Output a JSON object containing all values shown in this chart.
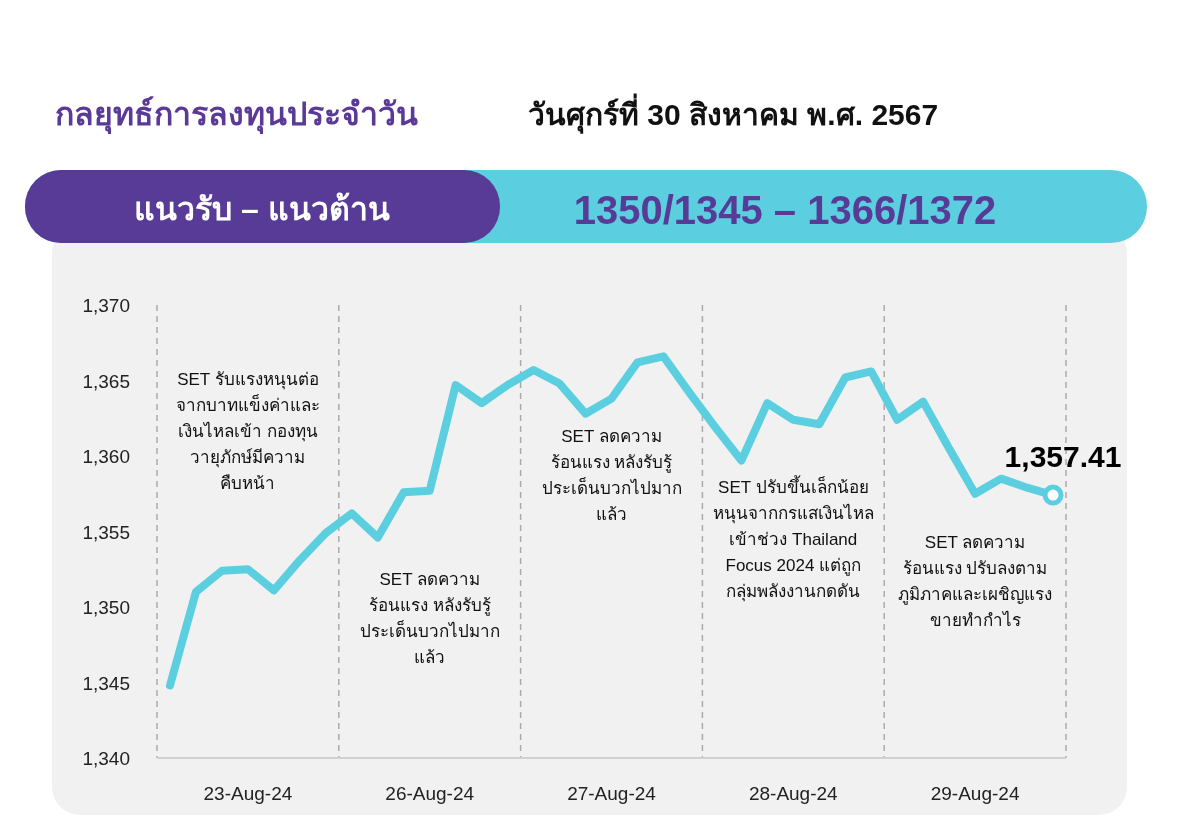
{
  "chart_data": {
    "type": "line",
    "title": "กลยุทธ์การลงทุนประจำวัน",
    "subtitle": "วันศุกร์ที่ 30 สิงหาคม พ.ศ. 2567",
    "annotations": [
      "แนวรับ – แนวต้าน",
      "1350/1345 – 1366/1372",
      "SET รับแรงหนุนต่อ\nจากบาทแข็งค่าและ\nเงินไหลเข้า กองทุน\nวายุภักษ์มีความ\nคืบหน้า",
      "SET ลดความ\nร้อนแรง หลังรับรู้\nประเด็นบวกไปมาก\nแล้ว",
      "SET ลดความ\nร้อนแรง หลังรับรู้\nประเด็นบวกไปมาก\nแล้ว",
      "SET ปรับขึ้นเล็กน้อย\nหนุนจากกรแสเงินไหล\nเข้าช่วง Thailand\nFocus 2024 แต่ถูก\nกลุ่มพลังงานกดดัน",
      "SET ลดความ\nร้อนแรง ปรับลงตาม\nภูมิภาคและเผชิญแรง\nขายทำกำไร"
    ],
    "series": [
      {
        "color": "#5bcfdf",
        "values": [
          1344.8,
          1351.0,
          1352.4,
          1352.5,
          1351.1,
          1353.1,
          1354.9,
          1356.2,
          1354.6,
          1357.6,
          1357.7,
          1364.7,
          1363.5,
          1364.7,
          1365.7,
          1364.8,
          1362.8,
          1363.8,
          1366.2,
          1366.6,
          1364.2,
          1361.9,
          1359.7,
          1363.5,
          1362.4,
          1362.1,
          1365.2,
          1365.6,
          1362.4,
          1363.6,
          1360.5,
          1357.5,
          1358.5,
          1357.9,
          1357.41
        ]
      },
      {
        "type": "scatter",
        "color": "#5bcfdf",
        "marker": "circle",
        "values": [
          null,
          null,
          null,
          null,
          null,
          null,
          null,
          null,
          null,
          null,
          null,
          null,
          null,
          null,
          null,
          null,
          null,
          null,
          null,
          null,
          null,
          null,
          null,
          null,
          null,
          null,
          null,
          null,
          null,
          null,
          null,
          null,
          null,
          null,
          1357.41
        ],
        "value_labels": [
          null,
          null,
          null,
          null,
          null,
          null,
          null,
          null,
          null,
          null,
          null,
          null,
          null,
          null,
          null,
          null,
          null,
          null,
          null,
          null,
          null,
          null,
          null,
          null,
          null,
          null,
          null,
          null,
          null,
          null,
          null,
          null,
          null,
          null,
          "1,357.41"
        ]
      }
    ],
    "categories": [
      null,
      null,
      null,
      "23-Aug-24",
      null,
      null,
      null,
      null,
      null,
      null,
      "26-Aug-24",
      null,
      null,
      null,
      null,
      null,
      null,
      "27-Aug-24",
      null,
      null,
      null,
      null,
      null,
      null,
      "28-Aug-24",
      null,
      null,
      null,
      null,
      null,
      null,
      "29-Aug-24",
      null,
      null,
      null
    ],
    "ylim": [
      1340,
      1370
    ],
    "yticks": [
      {
        "value": 1340,
        "label": "1,340"
      },
      {
        "value": 1345,
        "label": "1,345"
      },
      {
        "value": 1350,
        "label": "1,350"
      },
      {
        "value": 1355,
        "label": "1,355"
      },
      {
        "value": 1360,
        "label": "1,360"
      },
      {
        "value": 1365,
        "label": "1,365"
      },
      {
        "value": 1370,
        "label": "1,370"
      }
    ],
    "grid": false
  }
}
